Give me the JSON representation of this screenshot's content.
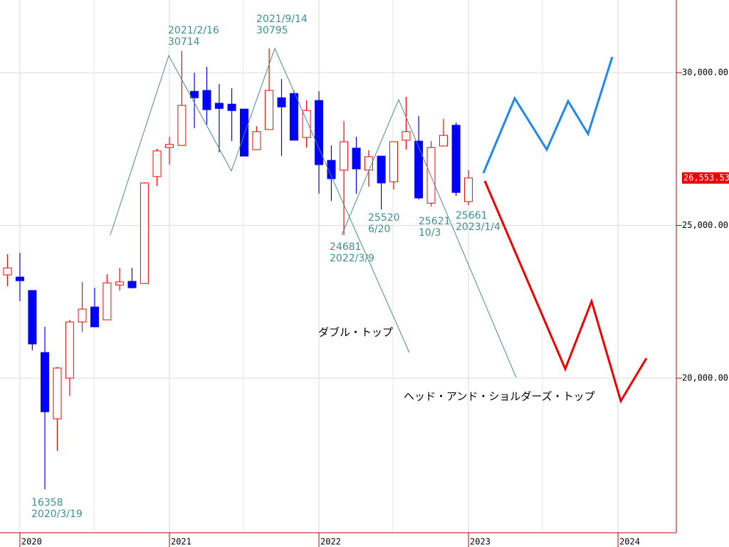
{
  "chart_data": {
    "type": "candlestick",
    "x": [
      2019.917,
      2020.0,
      2020.083,
      2020.167,
      2020.25,
      2020.333,
      2020.417,
      2020.5,
      2020.583,
      2020.667,
      2020.75,
      2020.833,
      2020.917,
      2021.0,
      2021.083,
      2021.167,
      2021.25,
      2021.333,
      2021.417,
      2021.5,
      2021.583,
      2021.667,
      2021.75,
      2021.833,
      2021.917,
      2022.0,
      2022.083,
      2022.167,
      2022.25,
      2022.333,
      2022.417,
      2022.5,
      2022.583,
      2022.667,
      2022.75,
      2022.833,
      2022.917,
      2023.0
    ],
    "open": [
      23380,
      23310,
      22870,
      20840,
      18670,
      20000,
      21840,
      22330,
      21910,
      23050,
      23170,
      23100,
      26600,
      27550,
      27620,
      29390,
      29420,
      29000,
      28970,
      28810,
      27480,
      28140,
      29180,
      29320,
      27880,
      29090,
      27130,
      26810,
      27530,
      26810,
      27270,
      26430,
      27790,
      27760,
      25730,
      27600,
      28280,
      25780
    ],
    "high": [
      24060,
      24100,
      22870,
      21680,
      20370,
      21910,
      23150,
      22960,
      23400,
      23610,
      23610,
      26410,
      27510,
      27900,
      30714,
      30000,
      30190,
      29630,
      29490,
      28810,
      28250,
      30795,
      29790,
      29420,
      29090,
      29390,
      27620,
      28420,
      27900,
      27460,
      27270,
      27740,
      29210,
      28580,
      27760,
      28490,
      28370,
      26810
    ],
    "low": [
      23010,
      22520,
      20910,
      16358,
      17620,
      19420,
      21520,
      21680,
      21910,
      22870,
      22940,
      23100,
      26290,
      26990,
      27620,
      28180,
      28300,
      27390,
      27760,
      27270,
      27480,
      28140,
      27270,
      27790,
      27550,
      26040,
      25800,
      24681,
      26040,
      26270,
      25520,
      26180,
      27480,
      25850,
      25621,
      27600,
      25970,
      25661
    ],
    "close": [
      23610,
      23190,
      21120,
      18900,
      20330,
      21840,
      22260,
      21680,
      23120,
      23150,
      22960,
      26390,
      27440,
      27650,
      28930,
      29180,
      28790,
      28830,
      28760,
      27270,
      28070,
      29420,
      28880,
      27790,
      28760,
      26990,
      26530,
      27740,
      26850,
      27250,
      26390,
      27740,
      28070,
      25900,
      27550,
      27950,
      26080,
      26553.53
    ],
    "up_color": "#ff0000",
    "down_color": "#0000ff",
    "xlim": [
      2019.867,
      2024.39
    ],
    "xticks": [
      2020,
      2021,
      2022,
      2023,
      2024
    ],
    "ylim": [
      14940,
      32380
    ],
    "yticks": [
      {
        "value": 20000,
        "label": "20,000.00"
      },
      {
        "value": 25000,
        "label": "25,000.00"
      },
      {
        "value": 30000,
        "label": "30,000.00"
      }
    ],
    "grid": true,
    "last_price": {
      "value": 26553.53,
      "label": "26,553.53"
    },
    "annotations": [
      {
        "lines": [
          "2021/2/16",
          "30714"
        ]
      },
      {
        "lines": [
          "2021/9/14",
          "30795"
        ]
      },
      {
        "lines": [
          "24681",
          "2022/3/9"
        ]
      },
      {
        "lines": [
          "25520",
          "6/20"
        ]
      },
      {
        "lines": [
          "25621",
          "10/3"
        ]
      },
      {
        "lines": [
          "25661",
          "2023/1/4"
        ]
      },
      {
        "lines": [
          "16358",
          "2020/3/19"
        ]
      }
    ],
    "pattern_labels": [
      "ダブル・トップ",
      "ヘッド・アンド・ショルダーズ・トップ"
    ]
  }
}
